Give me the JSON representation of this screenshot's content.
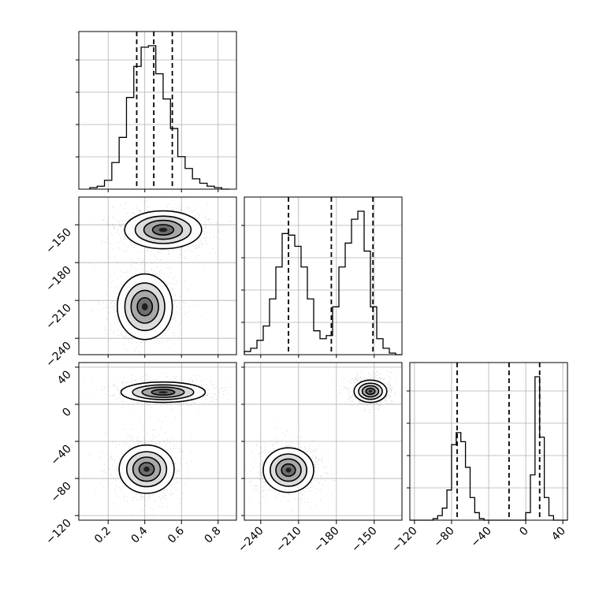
{
  "chart_data": {
    "type": "corner",
    "grid": true,
    "colors": {
      "ink": "#000000",
      "grid": "#b0b0b0",
      "samples": "#9a9a9a"
    },
    "params": [
      {
        "range": [
          0.04,
          0.9
        ],
        "ticks": [
          0.2,
          0.4,
          0.6,
          0.8
        ],
        "tick_labels": [
          "0.2",
          "0.4",
          "0.6",
          "0.8"
        ]
      },
      {
        "range": [
          -253,
          -128
        ],
        "ticks": [
          -240,
          -210,
          -180,
          -150
        ],
        "tick_labels": [
          "−240",
          "−210",
          "−180",
          "−150"
        ]
      },
      {
        "range": [
          -125,
          45
        ],
        "ticks": [
          -120,
          -80,
          -40,
          0,
          40
        ],
        "tick_labels": [
          "−120",
          "−80",
          "−40",
          "0",
          "40"
        ]
      }
    ],
    "marginals": [
      {
        "param": 0,
        "bin_edges": [
          0.1,
          0.14,
          0.18,
          0.22,
          0.26,
          0.3,
          0.34,
          0.38,
          0.42,
          0.46,
          0.5,
          0.54,
          0.58,
          0.62,
          0.66,
          0.7,
          0.74,
          0.78,
          0.82,
          0.86
        ],
        "counts": [
          1,
          2,
          6,
          18,
          35,
          62,
          83,
          96,
          97,
          78,
          61,
          41,
          22,
          14,
          7,
          4,
          2,
          1,
          0
        ],
        "quantiles": [
          0.356,
          0.449,
          0.55
        ]
      },
      {
        "param": 1,
        "bin_edges": [
          -253,
          -248,
          -243,
          -238,
          -233,
          -228,
          -223,
          -218,
          -213,
          -208,
          -203,
          -198,
          -193,
          -188,
          -183,
          -178,
          -173,
          -168,
          -163,
          -158,
          -153,
          -148,
          -143,
          -138,
          -133,
          -128
        ],
        "counts": [
          2,
          4,
          9,
          18,
          35,
          55,
          76,
          75,
          68,
          55,
          35,
          15,
          10,
          12,
          30,
          55,
          70,
          85,
          90,
          65,
          30,
          10,
          4,
          1,
          0
        ],
        "quantiles": [
          -218,
          -184,
          -151
        ]
      },
      {
        "param": 2,
        "bin_edges": [
          -125,
          -120,
          -115,
          -110,
          -105,
          -100,
          -95,
          -90,
          -85,
          -80,
          -75,
          -70,
          -65,
          -60,
          -55,
          -50,
          -45,
          -40,
          -35,
          -30,
          -25,
          -20,
          -15,
          -10,
          -5,
          0,
          5,
          10,
          15,
          20,
          25,
          30,
          35,
          40,
          45
        ],
        "counts": [
          0,
          0,
          0,
          0,
          0,
          1,
          3,
          8,
          20,
          50,
          58,
          52,
          35,
          15,
          5,
          1,
          0,
          0,
          0,
          0,
          0,
          0,
          0,
          0,
          0,
          5,
          30,
          95,
          55,
          15,
          3,
          0,
          0,
          0
        ],
        "quantiles": [
          -74,
          -18,
          15
        ]
      }
    ],
    "joint": [
      {
        "x_param": 0,
        "y_param": 1,
        "modes": [
          {
            "cx": 0.5,
            "cy": -154,
            "sx": 0.105,
            "sy": 7.5,
            "weight": 1.0
          },
          {
            "cx": 0.4,
            "cy": -215,
            "sx": 0.075,
            "sy": 13,
            "weight": 1.0
          }
        ]
      },
      {
        "x_param": 0,
        "y_param": 2,
        "modes": [
          {
            "cx": 0.5,
            "cy": 13,
            "sx": 0.115,
            "sy": 5.5,
            "weight": 1.0
          },
          {
            "cx": 0.41,
            "cy": -70,
            "sx": 0.075,
            "sy": 13,
            "weight": 1.0
          }
        ]
      },
      {
        "x_param": 1,
        "y_param": 2,
        "modes": [
          {
            "cx": -153,
            "cy": 14,
            "sx": 6.5,
            "sy": 6,
            "weight": 1.0
          },
          {
            "cx": -218,
            "cy": -71,
            "sx": 10,
            "sy": 12,
            "weight": 1.0
          }
        ]
      }
    ]
  }
}
